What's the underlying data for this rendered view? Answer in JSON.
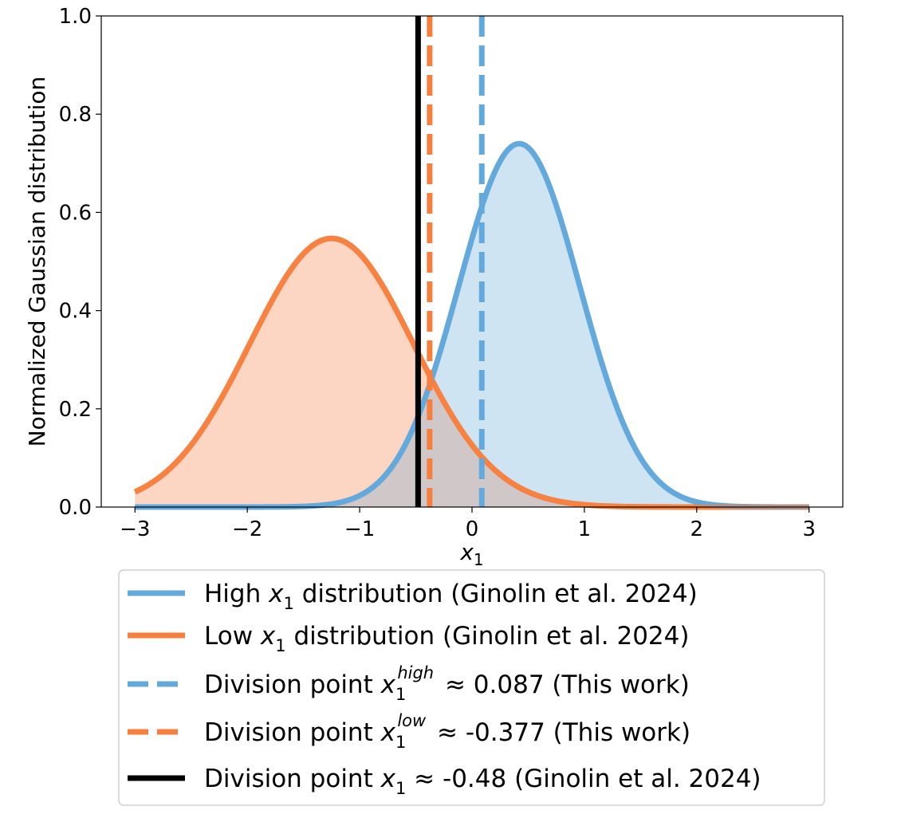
{
  "chart_data": {
    "type": "line",
    "xlabel": "x1",
    "xlabel_symbol": "x",
    "xlabel_subscript": "1",
    "ylabel": "Normalized Gaussian distribution",
    "xlim": [
      -3.3,
      3.3
    ],
    "ylim": [
      0,
      1.0
    ],
    "x_ticks": [
      -3,
      -2,
      -1,
      0,
      1,
      2,
      3
    ],
    "x_tick_labels": [
      "−3",
      "−2",
      "−1",
      "0",
      "1",
      "2",
      "3"
    ],
    "y_ticks": [
      0.0,
      0.2,
      0.4,
      0.6,
      0.8,
      1.0
    ],
    "y_tick_labels": [
      "0.0",
      "0.2",
      "0.4",
      "0.6",
      "0.8",
      "1.0"
    ],
    "x_range": [
      -3,
      3
    ],
    "series": [
      {
        "name": "High x1 distribution (Ginolin et al. 2024)",
        "kind": "gaussian",
        "mean": 0.42,
        "sigma": 0.54,
        "peak": 0.74,
        "color": "#64a9db",
        "fill": "#cfe4f3"
      },
      {
        "name": "Low x1 distribution (Ginolin et al. 2024)",
        "kind": "gaussian",
        "mean": -1.25,
        "sigma": 0.73,
        "peak": 0.547,
        "color": "#f77f3e",
        "fill": "#fdd6c3"
      }
    ],
    "vlines": [
      {
        "name": "Division point x1^high ≈ 0.087 (This work)",
        "x": 0.087,
        "color": "#64a9db",
        "style": "dashed"
      },
      {
        "name": "Division point x1^low ≈ -0.377 (This work)",
        "x": -0.377,
        "color": "#f77f3e",
        "style": "dashed"
      },
      {
        "name": "Division point x1 ≈ -0.48 (Ginolin et al. 2024)",
        "x": -0.48,
        "color": "#000000",
        "style": "solid"
      }
    ],
    "overlap_fill": "#d0c8c8",
    "legend_position": "below-center"
  },
  "legend": {
    "items": [
      {
        "pre": "High ",
        "sym": "x",
        "sub": "1",
        "sup": "",
        "post": " distribution (Ginolin et al. 2024)"
      },
      {
        "pre": "Low ",
        "sym": "x",
        "sub": "1",
        "sup": "",
        "post": " distribution (Ginolin et al. 2024)"
      },
      {
        "pre": "Division point ",
        "sym": "x",
        "sub": "1",
        "sup": "high",
        "post": " ≈ 0.087 (This work)"
      },
      {
        "pre": "Division point ",
        "sym": "x",
        "sub": "1",
        "sup": "low",
        "post": " ≈ -0.377 (This work)"
      },
      {
        "pre": "Division point ",
        "sym": "x",
        "sub": "1",
        "sup": "",
        "post": " ≈ -0.48 (Ginolin et al. 2024)"
      }
    ]
  }
}
